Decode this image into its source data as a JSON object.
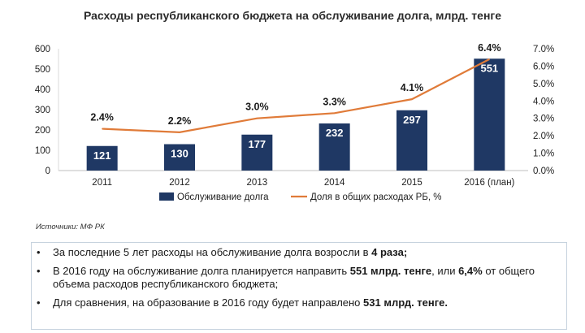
{
  "title": "Расходы республиканского бюджета на обслуживание долга, млрд. тенге",
  "source": "Источники: МФ РК",
  "chart_data": {
    "type": "bar",
    "categories": [
      "2011",
      "2012",
      "2013",
      "2014",
      "2015",
      "2016 (план)"
    ],
    "series": [
      {
        "name": "Обслуживание долга",
        "type": "bar",
        "axis": "left",
        "color": "#1f3864",
        "values": [
          121,
          130,
          177,
          232,
          297,
          551
        ],
        "labels": [
          "121",
          "130",
          "177",
          "232",
          "297",
          "551"
        ]
      },
      {
        "name": "Доля в общих расходах РБ, %",
        "type": "line",
        "axis": "right",
        "color": "#e07b39",
        "values": [
          2.4,
          2.2,
          3.0,
          3.3,
          4.1,
          6.4
        ],
        "labels": [
          "2.4%",
          "2.2%",
          "3.0%",
          "3.3%",
          "4.1%",
          "6.4%"
        ]
      }
    ],
    "y_left": {
      "min": 0,
      "max": 600,
      "ticks": [
        "0",
        "100",
        "200",
        "300",
        "400",
        "500",
        "600"
      ]
    },
    "y_right": {
      "min": 0,
      "max": 7,
      "ticks": [
        "0.0%",
        "1.0%",
        "2.0%",
        "3.0%",
        "4.0%",
        "5.0%",
        "6.0%",
        "7.0%"
      ]
    },
    "grid": false,
    "legend_position": "bottom"
  },
  "notes": [
    {
      "parts": [
        {
          "t": "За последние 5 лет расходы на обслуживание долга возросли в "
        },
        {
          "t": "4 раза;",
          "b": true
        }
      ]
    },
    {
      "parts": [
        {
          "t": "В 2016 году на обслуживание долга планируется направить "
        },
        {
          "t": "551 млрд. тенге",
          "b": true
        },
        {
          "t": ", или "
        },
        {
          "t": "6,4%",
          "b": true
        },
        {
          "t": " от общего объема расходов республиканского бюджета;"
        }
      ]
    },
    {
      "parts": [
        {
          "t": "Для сравнения, на образование в 2016 году будет направлено "
        },
        {
          "t": "531 млрд. тенге.",
          "b": true
        }
      ]
    }
  ],
  "bullet": "•"
}
